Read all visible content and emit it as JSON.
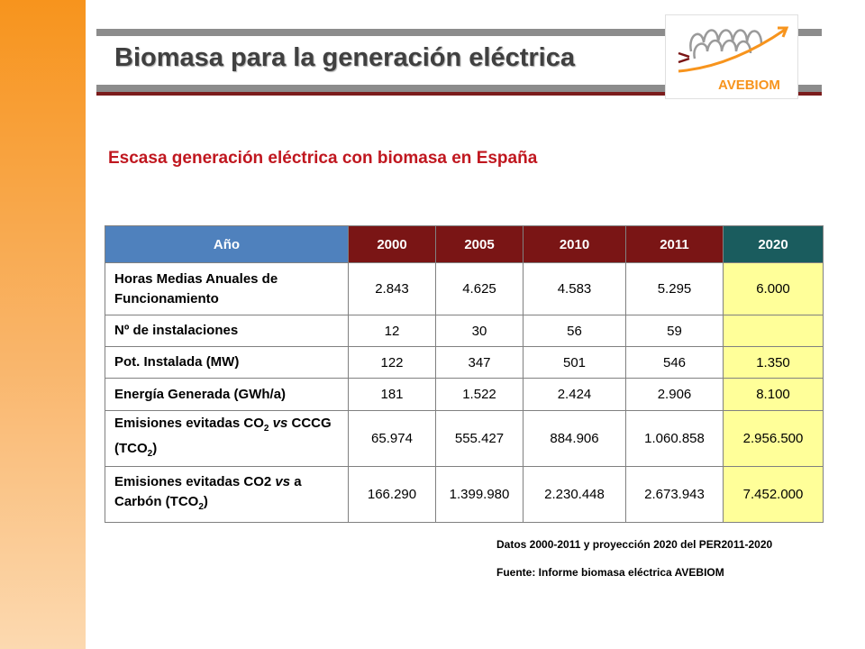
{
  "header": {
    "title": "Biomasa para la generación eléctrica",
    "logo_text": "AVEBIOM"
  },
  "subtitle": "Escasa generación eléctrica con biomasa en España",
  "table": {
    "header_label": "Año",
    "years": [
      "2000",
      "2005",
      "2010",
      "2011",
      "2020"
    ],
    "rows": [
      {
        "label": "Horas Medias Anuales de Funcionamiento",
        "values": [
          "2.843",
          "4.625",
          "4.583",
          "5.295",
          "6.000"
        ]
      },
      {
        "label": "Nº de instalaciones",
        "values": [
          "12",
          "30",
          "56",
          "59",
          ""
        ]
      },
      {
        "label": "Pot. Instalada (MW)",
        "values": [
          "122",
          "347",
          "501",
          "546",
          "1.350"
        ]
      },
      {
        "label": "Energía Generada (GWh/a)",
        "values": [
          "181",
          "1.522",
          "2.424",
          "2.906",
          "8.100"
        ]
      },
      {
        "label_parts": [
          "Emisiones evitadas CO",
          "2",
          " vs",
          " CCCG (TCO",
          "2",
          ")"
        ],
        "values": [
          "65.974",
          "555.427",
          "884.906",
          "1.060.858",
          "2.956.500"
        ]
      },
      {
        "label_parts": [
          "Emisiones evitadas CO2",
          " vs",
          " a Carbón (TCO",
          "2",
          ")"
        ],
        "values": [
          "166.290",
          "1.399.980",
          "2.230.448",
          "2.673.943",
          "7.452.000"
        ]
      }
    ]
  },
  "notes": {
    "data_source": "Datos 2000-2011 y proyección 2020 del PER2011-2020",
    "source": "Fuente: Informe biomasa eléctrica AVEBIOM"
  },
  "colors": {
    "left_band": "#f7941d",
    "title_bar": "#8c8c8c",
    "title_bar_accent": "#7b1c1c",
    "subtitle": "#c0171f",
    "header_label_bg": "#4f81bd",
    "header_year_bg": "#7a1515",
    "header_2020_bg": "#1a5c5e",
    "projection_bg": "#ffff99",
    "logo_accent": "#f7941d"
  }
}
